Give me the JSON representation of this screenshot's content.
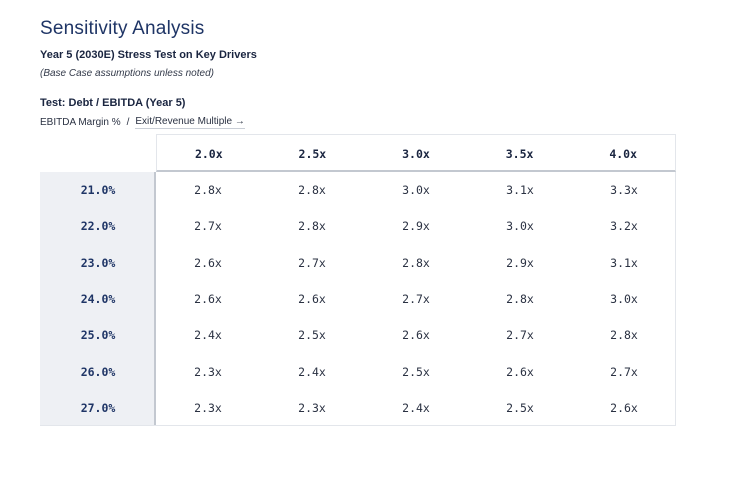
{
  "header": {
    "title": "Sensitivity Analysis",
    "subtitle": "Year 5 (2030E) Stress Test on Key Drivers",
    "note": "(Base Case assumptions unless noted)"
  },
  "test": {
    "label": "Test: Debt / EBITDA (Year 5)",
    "row_axis": "EBITDA Margin %",
    "separator": "/",
    "col_axis": "Exit/Revenue Multiple →"
  },
  "table": {
    "columns": [
      "2.0x",
      "2.5x",
      "3.0x",
      "3.5x",
      "4.0x"
    ],
    "rows": [
      {
        "label": "21.0%",
        "values": [
          "2.8x",
          "2.8x",
          "3.0x",
          "3.1x",
          "3.3x"
        ]
      },
      {
        "label": "22.0%",
        "values": [
          "2.7x",
          "2.8x",
          "2.9x",
          "3.0x",
          "3.2x"
        ]
      },
      {
        "label": "23.0%",
        "values": [
          "2.6x",
          "2.7x",
          "2.8x",
          "2.9x",
          "3.1x"
        ]
      },
      {
        "label": "24.0%",
        "values": [
          "2.6x",
          "2.6x",
          "2.7x",
          "2.8x",
          "3.0x"
        ]
      },
      {
        "label": "25.0%",
        "values": [
          "2.4x",
          "2.5x",
          "2.6x",
          "2.7x",
          "2.8x"
        ]
      },
      {
        "label": "26.0%",
        "values": [
          "2.3x",
          "2.4x",
          "2.5x",
          "2.6x",
          "2.7x"
        ]
      },
      {
        "label": "27.0%",
        "values": [
          "2.3x",
          "2.3x",
          "2.4x",
          "2.5x",
          "2.6x"
        ]
      }
    ]
  }
}
